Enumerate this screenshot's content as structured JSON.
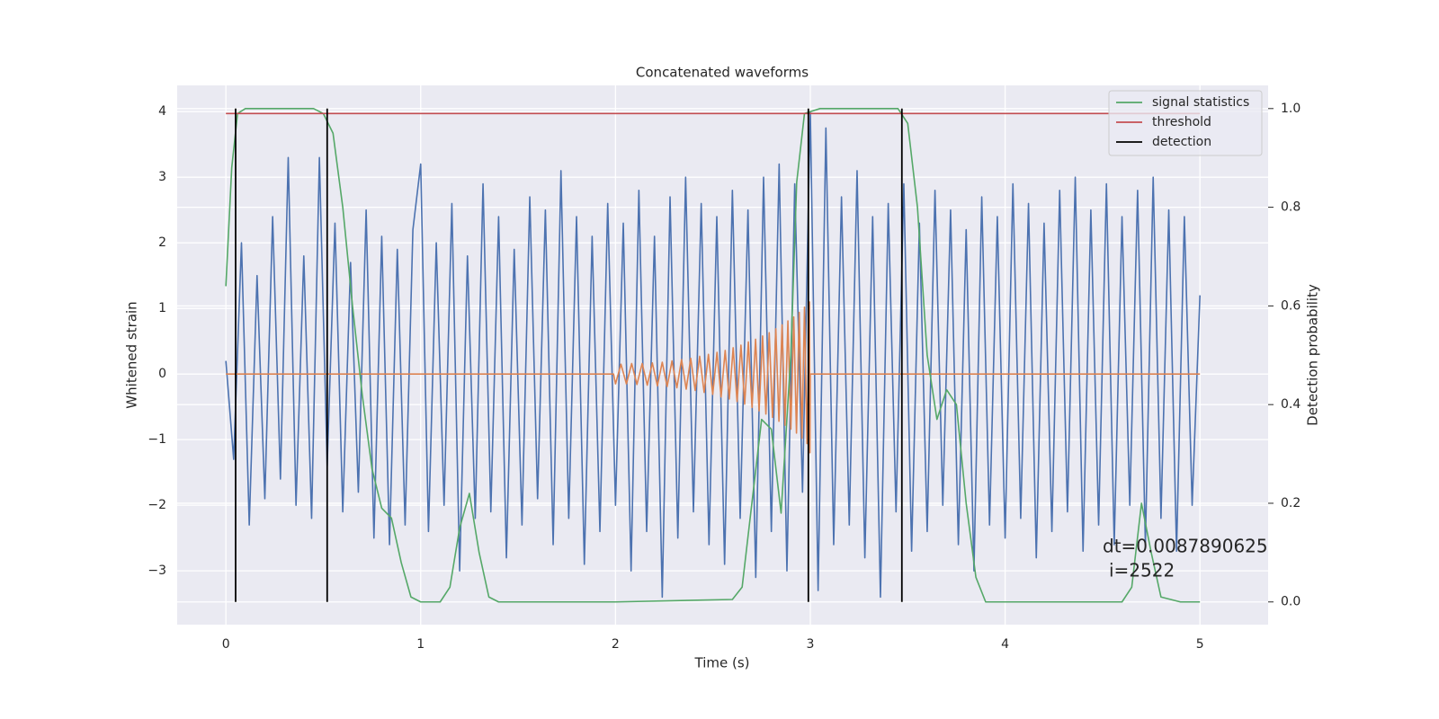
{
  "chart_data": {
    "type": "line",
    "title": "Concatenated waveforms",
    "xlabel": "Time (s)",
    "ylabel": "Whitened strain",
    "y2label": "Detection probability",
    "xlim": [
      -0.25,
      5.35
    ],
    "ylim": [
      -3.82,
      4.4
    ],
    "y2lim": [
      -0.046,
      1.047
    ],
    "xticks": [
      0,
      1,
      2,
      3,
      4,
      5
    ],
    "yticks": [
      {
        "value": -3,
        "label": "−3"
      },
      {
        "value": -2,
        "label": "−2"
      },
      {
        "value": -1,
        "label": "−1"
      },
      0,
      1,
      2,
      3,
      4
    ],
    "y2ticks": [
      {
        "value": 0,
        "label": "0.0"
      },
      0.2,
      0.4,
      0.6,
      0.8,
      {
        "value": 1,
        "label": "1.0"
      }
    ],
    "grid": true,
    "legend": "upper right",
    "annotations": [
      "dt=0.0087890625",
      "i=2522"
    ],
    "series": [
      {
        "color": "#4c72b0",
        "axis": "y",
        "x": [
          0,
          0.04,
          0.08,
          0.12,
          0.16,
          0.2,
          0.24,
          0.28,
          0.32,
          0.36,
          0.4,
          0.44,
          0.48,
          0.52,
          0.56,
          0.6,
          0.64,
          0.68,
          0.72,
          0.76,
          0.8,
          0.84,
          0.88,
          0.92,
          0.96,
          1.0,
          1.04,
          1.08,
          1.12,
          1.16,
          1.2,
          1.24,
          1.28,
          1.32,
          1.36,
          1.4,
          1.44,
          1.48,
          1.52,
          1.56,
          1.6,
          1.64,
          1.68,
          1.72,
          1.76,
          1.8,
          1.84,
          1.88,
          1.92,
          1.96,
          2.0,
          2.04,
          2.08,
          2.12,
          2.16,
          2.2,
          2.24,
          2.28,
          2.32,
          2.36,
          2.4,
          2.44,
          2.48,
          2.52,
          2.56,
          2.6,
          2.64,
          2.68,
          2.72,
          2.76,
          2.8,
          2.84,
          2.88,
          2.92,
          2.96,
          3.0,
          3.04,
          3.08,
          3.12,
          3.16,
          3.2,
          3.24,
          3.28,
          3.32,
          3.36,
          3.4,
          3.44,
          3.48,
          3.52,
          3.56,
          3.6,
          3.64,
          3.68,
          3.72,
          3.76,
          3.8,
          3.84,
          3.88,
          3.92,
          3.96,
          4.0,
          4.04,
          4.08,
          4.12,
          4.16,
          4.2,
          4.24,
          4.28,
          4.32,
          4.36,
          4.4,
          4.44,
          4.48,
          4.52,
          4.56,
          4.6,
          4.64,
          4.68,
          4.72,
          4.76,
          4.8,
          4.84,
          4.88,
          4.92,
          4.96,
          5.0
        ],
        "values": [
          0.2,
          -1.3,
          2.0,
          -2.3,
          1.5,
          -1.9,
          2.4,
          -1.6,
          3.3,
          -2.0,
          1.8,
          -2.2,
          3.3,
          -1.4,
          2.3,
          -2.1,
          1.7,
          -1.8,
          2.5,
          -2.5,
          2.1,
          -2.6,
          1.9,
          -2.3,
          2.2,
          3.2,
          -2.4,
          2.0,
          -2.0,
          2.6,
          -3.0,
          1.8,
          -2.2,
          2.9,
          -2.1,
          2.4,
          -2.8,
          1.9,
          -2.3,
          2.7,
          -1.9,
          2.5,
          -2.6,
          3.1,
          -2.2,
          2.4,
          -2.9,
          2.1,
          -2.4,
          2.6,
          -2.0,
          2.3,
          -3.0,
          2.8,
          -2.4,
          2.1,
          -3.4,
          2.7,
          -2.5,
          3.0,
          -2.1,
          2.6,
          -2.6,
          2.4,
          -2.9,
          2.8,
          -2.2,
          2.5,
          -3.1,
          3.0,
          -2.4,
          3.2,
          -3.0,
          2.9,
          -1.8,
          4.0,
          -3.3,
          3.75,
          -2.6,
          2.7,
          -2.3,
          3.1,
          -2.8,
          2.4,
          -3.4,
          2.6,
          -2.1,
          2.9,
          -2.7,
          2.3,
          -2.4,
          2.8,
          -2.0,
          2.5,
          -2.6,
          2.2,
          -3.0,
          2.7,
          -2.3,
          2.4,
          -2.5,
          2.9,
          -2.2,
          2.6,
          -2.8,
          2.3,
          -2.4,
          2.8,
          -2.1,
          3.0,
          -2.7,
          2.5,
          -2.3,
          2.9,
          -2.6,
          2.4,
          -2.0,
          2.8,
          -2.6,
          3.0,
          -2.2,
          2.5,
          -2.7,
          2.4,
          -2.0,
          1.2
        ]
      },
      {
        "color": "#dd8452",
        "axis": "y",
        "x": [
          0,
          1.99,
          2.0,
          2.028,
          2.056,
          2.083,
          2.11,
          2.137,
          2.163,
          2.189,
          2.215,
          2.24,
          2.265,
          2.29,
          2.315,
          2.339,
          2.363,
          2.386,
          2.409,
          2.432,
          2.455,
          2.477,
          2.499,
          2.521,
          2.542,
          2.563,
          2.584,
          2.604,
          2.624,
          2.644,
          2.663,
          2.682,
          2.701,
          2.719,
          2.737,
          2.755,
          2.772,
          2.789,
          2.806,
          2.823,
          2.839,
          2.855,
          2.87,
          2.885,
          2.9,
          2.915,
          2.929,
          2.943,
          2.957,
          2.97,
          2.983,
          2.996,
          2.998,
          3.0,
          5.0
        ],
        "values": [
          0,
          0,
          -0.15,
          0.15,
          -0.15,
          0.16,
          -0.16,
          0.16,
          -0.17,
          0.17,
          -0.18,
          0.18,
          -0.19,
          0.2,
          -0.21,
          0.22,
          -0.23,
          0.24,
          -0.25,
          0.27,
          -0.28,
          0.3,
          -0.31,
          0.33,
          -0.35,
          0.36,
          -0.38,
          0.4,
          -0.42,
          0.44,
          -0.46,
          0.49,
          -0.51,
          0.53,
          -0.56,
          0.58,
          -0.61,
          0.63,
          -0.66,
          0.69,
          -0.72,
          0.75,
          -0.78,
          0.81,
          -0.84,
          0.87,
          -0.9,
          0.94,
          -0.98,
          1.02,
          -1.06,
          1.1,
          -1.2,
          0,
          0
        ]
      },
      {
        "name": "signal statistics",
        "color": "#55a868",
        "axis": "y2",
        "x": [
          0,
          0.03,
          0.06,
          0.1,
          0.45,
          0.5,
          0.55,
          0.6,
          0.65,
          0.7,
          0.75,
          0.8,
          0.85,
          0.9,
          0.95,
          1.0,
          1.1,
          1.15,
          1.2,
          1.25,
          1.3,
          1.35,
          1.4,
          2.0,
          2.6,
          2.65,
          2.7,
          2.75,
          2.8,
          2.85,
          2.9,
          2.93,
          2.97,
          3.05,
          3.45,
          3.5,
          3.55,
          3.6,
          3.65,
          3.7,
          3.75,
          3.8,
          3.85,
          3.9,
          4.6,
          4.65,
          4.7,
          4.75,
          4.8,
          4.9,
          5.0
        ],
        "values": [
          0.64,
          0.88,
          0.99,
          1.0,
          1.0,
          0.99,
          0.95,
          0.8,
          0.6,
          0.42,
          0.27,
          0.19,
          0.17,
          0.08,
          0.01,
          0.0,
          0.0,
          0.03,
          0.15,
          0.22,
          0.1,
          0.01,
          0.0,
          0.0,
          0.005,
          0.03,
          0.2,
          0.37,
          0.35,
          0.18,
          0.5,
          0.85,
          0.99,
          1.0,
          1.0,
          0.97,
          0.8,
          0.5,
          0.37,
          0.43,
          0.4,
          0.2,
          0.05,
          0.0,
          0.0,
          0.03,
          0.2,
          0.1,
          0.01,
          0.0,
          0.0
        ]
      },
      {
        "name": "threshold",
        "color": "#c44e52",
        "axis": "y2",
        "x": [
          0,
          5
        ],
        "values": [
          0.99,
          0.99
        ]
      },
      {
        "name": "detection",
        "color": "#000000",
        "axis": "y2",
        "type": "vlines",
        "x": [
          0.05,
          0.52,
          2.99,
          3.47
        ],
        "ymin": 0,
        "ymax": 1
      }
    ]
  }
}
